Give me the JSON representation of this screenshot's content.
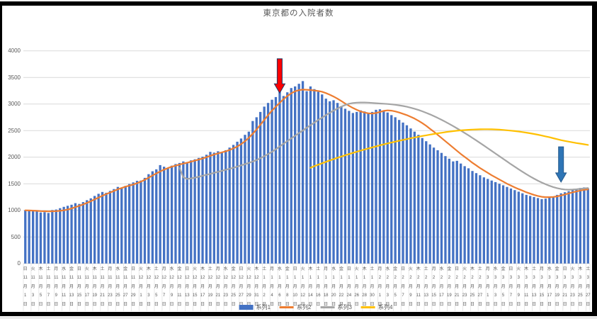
{
  "window": {
    "frame_color": "#000000",
    "background": "#ffffff"
  },
  "chart_data": {
    "type": "bar",
    "title": "東京都の入院者数",
    "xlabel": "",
    "ylabel": "",
    "grid": true,
    "legend_position": "bottom-center",
    "colors": {
      "gridline": "#D9D9D9",
      "separator": "#E2E2E2",
      "axis_text": "#595959"
    },
    "y_axis": {
      "min": 0,
      "max": 4000,
      "ticks": [
        0,
        500,
        1000,
        1500,
        2000,
        2500,
        3000,
        3500,
        4000
      ]
    },
    "x_axis": {
      "month_suffix": "月",
      "day_suffix": "日",
      "label_interval_days": 2,
      "labels": [
        [
          11,
          1,
          "日"
        ],
        [
          11,
          3,
          "火"
        ],
        [
          11,
          5,
          "木"
        ],
        [
          11,
          7,
          "土"
        ],
        [
          11,
          9,
          "月"
        ],
        [
          11,
          11,
          "水"
        ],
        [
          11,
          13,
          "金"
        ],
        [
          11,
          15,
          "日"
        ],
        [
          11,
          17,
          "火"
        ],
        [
          11,
          19,
          "木"
        ],
        [
          11,
          21,
          "土"
        ],
        [
          11,
          23,
          "月"
        ],
        [
          11,
          25,
          "水"
        ],
        [
          11,
          27,
          "金"
        ],
        [
          11,
          29,
          "日"
        ],
        [
          12,
          1,
          "火"
        ],
        [
          12,
          3,
          "木"
        ],
        [
          12,
          5,
          "土"
        ],
        [
          12,
          7,
          "月"
        ],
        [
          12,
          9,
          "水"
        ],
        [
          12,
          11,
          "金"
        ],
        [
          12,
          13,
          "日"
        ],
        [
          12,
          15,
          "火"
        ],
        [
          12,
          17,
          "木"
        ],
        [
          12,
          19,
          "土"
        ],
        [
          12,
          21,
          "月"
        ],
        [
          12,
          23,
          "水"
        ],
        [
          12,
          25,
          "金"
        ],
        [
          12,
          27,
          "日"
        ],
        [
          12,
          29,
          "火"
        ],
        [
          12,
          31,
          "木"
        ],
        [
          1,
          2,
          "土"
        ],
        [
          1,
          4,
          "月"
        ],
        [
          1,
          6,
          "水"
        ],
        [
          1,
          8,
          "金"
        ],
        [
          1,
          10,
          "日"
        ],
        [
          1,
          12,
          "火"
        ],
        [
          1,
          14,
          "木"
        ],
        [
          1,
          16,
          "土"
        ],
        [
          1,
          18,
          "月"
        ],
        [
          1,
          20,
          "水"
        ],
        [
          1,
          22,
          "金"
        ],
        [
          1,
          24,
          "日"
        ],
        [
          1,
          26,
          "火"
        ],
        [
          1,
          28,
          "木"
        ],
        [
          1,
          30,
          "土"
        ],
        [
          2,
          1,
          "月"
        ],
        [
          2,
          3,
          "水"
        ],
        [
          2,
          5,
          "金"
        ],
        [
          2,
          7,
          "日"
        ],
        [
          2,
          9,
          "火"
        ],
        [
          2,
          11,
          "木"
        ],
        [
          2,
          13,
          "土"
        ],
        [
          2,
          15,
          "月"
        ],
        [
          2,
          17,
          "水"
        ],
        [
          2,
          19,
          "金"
        ],
        [
          2,
          21,
          "日"
        ],
        [
          2,
          23,
          "火"
        ],
        [
          2,
          25,
          "木"
        ],
        [
          2,
          27,
          "土"
        ],
        [
          3,
          1,
          "月"
        ],
        [
          3,
          3,
          "水"
        ],
        [
          3,
          5,
          "金"
        ],
        [
          3,
          7,
          "日"
        ],
        [
          3,
          9,
          "火"
        ],
        [
          3,
          11,
          "木"
        ],
        [
          3,
          13,
          "土"
        ],
        [
          3,
          15,
          "月"
        ],
        [
          3,
          17,
          "水"
        ],
        [
          3,
          19,
          "金"
        ],
        [
          3,
          21,
          "日"
        ],
        [
          3,
          23,
          "火"
        ],
        [
          3,
          25,
          "木"
        ],
        [
          3,
          27,
          "土"
        ]
      ]
    },
    "bars": {
      "name": "系列1",
      "color": "#4472C4",
      "values": [
        1000,
        995,
        1005,
        985,
        960,
        965,
        950,
        1005,
        1015,
        1040,
        1065,
        1085,
        1105,
        1135,
        1120,
        1155,
        1190,
        1225,
        1270,
        1310,
        1345,
        1330,
        1365,
        1400,
        1440,
        1420,
        1460,
        1495,
        1525,
        1555,
        1560,
        1610,
        1680,
        1735,
        1770,
        1850,
        1820,
        1800,
        1840,
        1870,
        1890,
        1920,
        1905,
        1940,
        1960,
        1985,
        2010,
        2045,
        2100,
        2085,
        2110,
        2085,
        2130,
        2180,
        2230,
        2290,
        2350,
        2420,
        2480,
        2680,
        2750,
        2850,
        2950,
        3020,
        3080,
        3130,
        3270,
        3150,
        3220,
        3300,
        3330,
        3380,
        3430,
        3240,
        3330,
        3280,
        3230,
        3180,
        3100,
        3050,
        3070,
        3020,
        2960,
        2910,
        2870,
        2830,
        2850,
        2880,
        2860,
        2820,
        2850,
        2890,
        2900,
        2880,
        2840,
        2790,
        2750,
        2700,
        2650,
        2600,
        2540,
        2480,
        2420,
        2360,
        2300,
        2240,
        2180,
        2130,
        2080,
        2020,
        1970,
        1920,
        1930,
        1880,
        1830,
        1790,
        1740,
        1700,
        1660,
        1620,
        1590,
        1560,
        1530,
        1500,
        1470,
        1440,
        1410,
        1380,
        1350,
        1320,
        1290,
        1270,
        1250,
        1230,
        1210,
        1220,
        1240,
        1260,
        1290,
        1320,
        1340,
        1360,
        1380,
        1400,
        1420,
        1430,
        1410
      ]
    },
    "line_series": [
      {
        "name": "系列2",
        "color": "#ED7D31",
        "start_index": 0,
        "values": [
          1000,
          998,
          995,
          990,
          985,
          982,
          980,
          982,
          985,
          990,
          1000,
          1015,
          1035,
          1060,
          1085,
          1110,
          1140,
          1170,
          1205,
          1240,
          1275,
          1305,
          1335,
          1365,
          1395,
          1420,
          1445,
          1465,
          1485,
          1510,
          1540,
          1575,
          1615,
          1655,
          1695,
          1730,
          1765,
          1795,
          1820,
          1840,
          1860,
          1880,
          1895,
          1915,
          1935,
          1955,
          1975,
          2000,
          2025,
          2050,
          2070,
          2090,
          2110,
          2135,
          2165,
          2200,
          2245,
          2300,
          2365,
          2440,
          2520,
          2610,
          2700,
          2790,
          2875,
          2950,
          3020,
          3090,
          3150,
          3200,
          3240,
          3260,
          3270,
          3268,
          3262,
          3255,
          3245,
          3230,
          3205,
          3175,
          3140,
          3100,
          3055,
          3010,
          2965,
          2925,
          2890,
          2860,
          2840,
          2825,
          2820,
          2830,
          2850,
          2870,
          2880,
          2875,
          2860,
          2840,
          2815,
          2790,
          2760,
          2725,
          2685,
          2640,
          2590,
          2535,
          2480,
          2420,
          2360,
          2300,
          2240,
          2180,
          2120,
          2060,
          2005,
          1950,
          1895,
          1845,
          1795,
          1750,
          1705,
          1660,
          1620,
          1580,
          1540,
          1500,
          1465,
          1430,
          1400,
          1370,
          1340,
          1315,
          1290,
          1270,
          1255,
          1248,
          1248,
          1252,
          1262,
          1278,
          1298,
          1318,
          1338,
          1355,
          1372,
          1385,
          1395
        ]
      },
      {
        "name": "系列3",
        "color": "#A5A5A5",
        "start_index": 40,
        "values": [
          1800,
          1620,
          1590,
          1600,
          1615,
          1632,
          1650,
          1668,
          1686,
          1705,
          1724,
          1743,
          1762,
          1781,
          1800,
          1822,
          1845,
          1868,
          1892,
          1918,
          1945,
          1980,
          2018,
          2058,
          2100,
          2148,
          2200,
          2252,
          2302,
          2352,
          2402,
          2452,
          2502,
          2552,
          2602,
          2650,
          2698,
          2744,
          2790,
          2834,
          2876,
          2915,
          2950,
          2980,
          3005,
          3018,
          3025,
          3028,
          3028,
          3025,
          3020,
          3015,
          3010,
          3005,
          3000,
          2993,
          2985,
          2975,
          2962,
          2948,
          2930,
          2910,
          2888,
          2863,
          2835,
          2805,
          2772,
          2738,
          2702,
          2665,
          2625,
          2585,
          2543,
          2500,
          2455,
          2410,
          2363,
          2315,
          2267,
          2218,
          2168,
          2118,
          2068,
          2018,
          1968,
          1918,
          1868,
          1820,
          1772,
          1725,
          1680,
          1637,
          1596,
          1557,
          1522,
          1490,
          1462,
          1438,
          1418,
          1402,
          1392,
          1388,
          1390,
          1396,
          1404,
          1412,
          1420
        ]
      },
      {
        "name": "系列4",
        "color": "#FFC000",
        "start_index": 74,
        "values": [
          1800,
          1830,
          1858,
          1885,
          1912,
          1938,
          1963,
          1988,
          2012,
          2035,
          2058,
          2080,
          2102,
          2123,
          2144,
          2164,
          2184,
          2203,
          2222,
          2240,
          2258,
          2275,
          2292,
          2308,
          2324,
          2340,
          2355,
          2370,
          2384,
          2398,
          2411,
          2424,
          2436,
          2448,
          2459,
          2470,
          2480,
          2489,
          2497,
          2504,
          2510,
          2515,
          2519,
          2522,
          2524,
          2525,
          2525,
          2524,
          2521,
          2517,
          2512,
          2506,
          2499,
          2491,
          2482,
          2472,
          2461,
          2449,
          2436,
          2422,
          2407,
          2391,
          2374,
          2356,
          2338,
          2320,
          2305,
          2292,
          2278,
          2266,
          2254,
          2242,
          2230
        ]
      }
    ],
    "legend": {
      "series": [
        {
          "label": "系列1",
          "color": "#4472C4",
          "swatch": "bar"
        },
        {
          "label": "系列2",
          "color": "#ED7D31",
          "swatch": "line"
        },
        {
          "label": "系列3",
          "color": "#A5A5A5",
          "swatch": "line"
        },
        {
          "label": "系列4",
          "color": "#FFC000",
          "swatch": "line"
        }
      ]
    },
    "annotations": [
      {
        "name": "red-arrow",
        "shape": "down-arrow",
        "color": "#FF0000",
        "outline": "#1F3864",
        "day_index": 66,
        "from_value": 3850,
        "to_value": 3205
      },
      {
        "name": "blue-arrow",
        "shape": "down-arrow",
        "color": "#2E75B6",
        "outline": "#24598C",
        "day_index": 139,
        "from_value": 2195,
        "to_value": 1530
      }
    ]
  }
}
